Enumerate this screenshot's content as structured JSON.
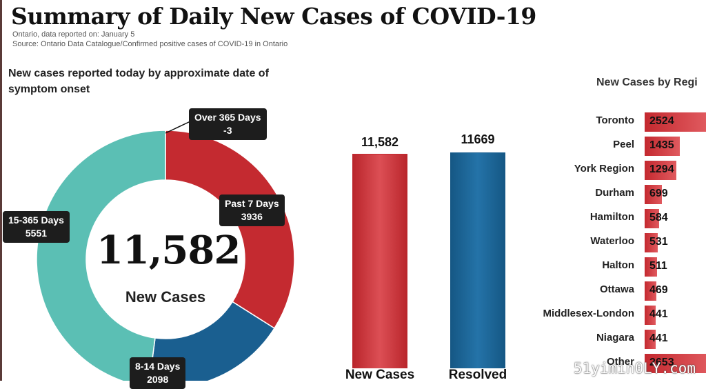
{
  "title": "Summary of Daily New Cases of COVID-19",
  "subtitle_1": "Ontario, data reported on: January 5",
  "subtitle_2": "Source: Ontario Data Catalogue/Confirmed positive cases of COVID-19 in Ontario",
  "donut_heading": "New cases reported today by approximate date of symptom onset",
  "center_value": "11,582",
  "center_label": "New Cases",
  "colors": {
    "red": "#c42a30",
    "blue": "#1a5f90",
    "teal": "#5bbfb4",
    "label_bg": "#1d1d1d"
  },
  "watermark": "51yimin0LY.com",
  "chart_data": [
    {
      "type": "pie",
      "title": "New cases reported today by approximate date of symptom onset",
      "slices": [
        {
          "label": "Over 365 Days",
          "value": -3,
          "display": "-3",
          "color": "#c42a30"
        },
        {
          "label": "Past 7 Days",
          "value": 3936,
          "display": "3936",
          "color": "#c42a30"
        },
        {
          "label": "8-14 Days",
          "value": 2098,
          "display": "2098",
          "color": "#1a5f90"
        },
        {
          "label": "15-365 Days",
          "value": 5551,
          "display": "5551",
          "color": "#5bbfb4"
        }
      ],
      "center_text": "11,582",
      "center_subtext": "New Cases"
    },
    {
      "type": "bar",
      "categories": [
        "New Cases",
        "Resolved"
      ],
      "values": [
        11582,
        11669
      ],
      "value_labels": [
        "11,582",
        "11669"
      ],
      "colors": [
        "#c42a30",
        "#1a5f90"
      ]
    },
    {
      "type": "bar",
      "orientation": "horizontal",
      "title": "New Cases by Regi",
      "categories": [
        "Toronto",
        "Peel",
        "York Region",
        "Durham",
        "Hamilton",
        "Waterloo",
        "Halton",
        "Ottawa",
        "Middlesex-London",
        "Niagara",
        "Other"
      ],
      "values": [
        2524,
        1435,
        1294,
        699,
        584,
        531,
        511,
        469,
        441,
        441,
        2653
      ]
    }
  ]
}
